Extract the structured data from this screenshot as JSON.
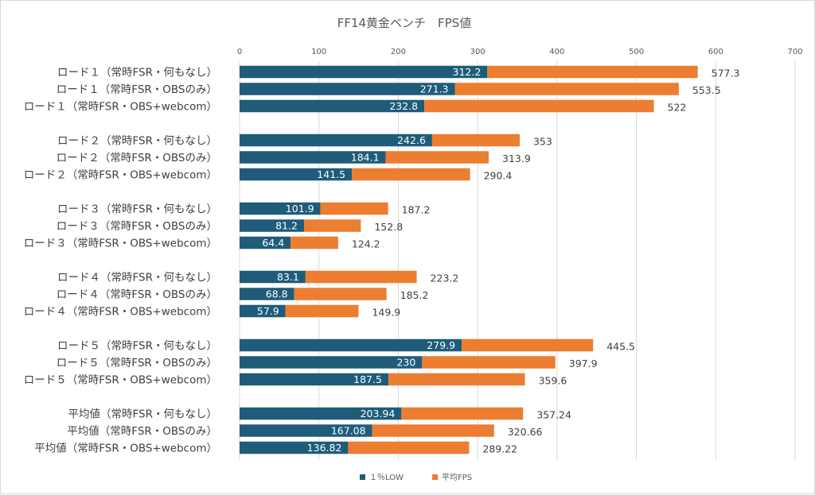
{
  "chart_data": {
    "type": "bar",
    "orientation": "horizontal",
    "title": "FF14黄金ベンチ　FPS値",
    "xlim": [
      0,
      700
    ],
    "ticks": [
      0,
      100,
      200,
      300,
      400,
      500,
      600,
      700
    ],
    "gridlines": true,
    "legend_position": "bottom",
    "categories": [
      "ロード１（常時FSR・何もなし）",
      "ロード１（常時FSR・OBSのみ）",
      "ロード１（常時FSR・OBS+webcom）",
      "ロード２（常時FSR・何もなし）",
      "ロード２（常時FSR・OBSのみ）",
      "ロード２（常時FSR・OBS+webcom）",
      "ロード３（常時FSR・何もなし）",
      "ロード３（常時FSR・OBSのみ）",
      "ロード３（常時FSR・OBS+webcom）",
      "ロード４（常時FSR・何もなし）",
      "ロード４（常時FSR・OBSのみ）",
      "ロード４（常時FSR・OBS+webcom）",
      "ロード５（常時FSR・何もなし）",
      "ロード５（常時FSR・OBSのみ）",
      "ロード５（常時FSR・OBS+webcom）",
      "平均値（常時FSR・何もなし）",
      "平均値（常時FSR・OBSのみ）",
      "平均値（常時FSR・OBS+webcom）"
    ],
    "series": [
      {
        "name": "１％LOW",
        "color": "#1f5c7a",
        "values": [
          312.2,
          271.3,
          232.8,
          242.6,
          184.1,
          141.5,
          101.9,
          81.2,
          64.4,
          83.1,
          68.8,
          57.9,
          279.9,
          230,
          187.5,
          203.94,
          167.08,
          136.82
        ]
      },
      {
        "name": "平均FPS",
        "color": "#ed7d31",
        "values": [
          577.3,
          553.5,
          522,
          353,
          313.9,
          290.4,
          187.2,
          152.8,
          124.2,
          223.2,
          185.2,
          149.9,
          445.5,
          397.9,
          359.6,
          357.24,
          320.66,
          289.22
        ]
      }
    ]
  }
}
